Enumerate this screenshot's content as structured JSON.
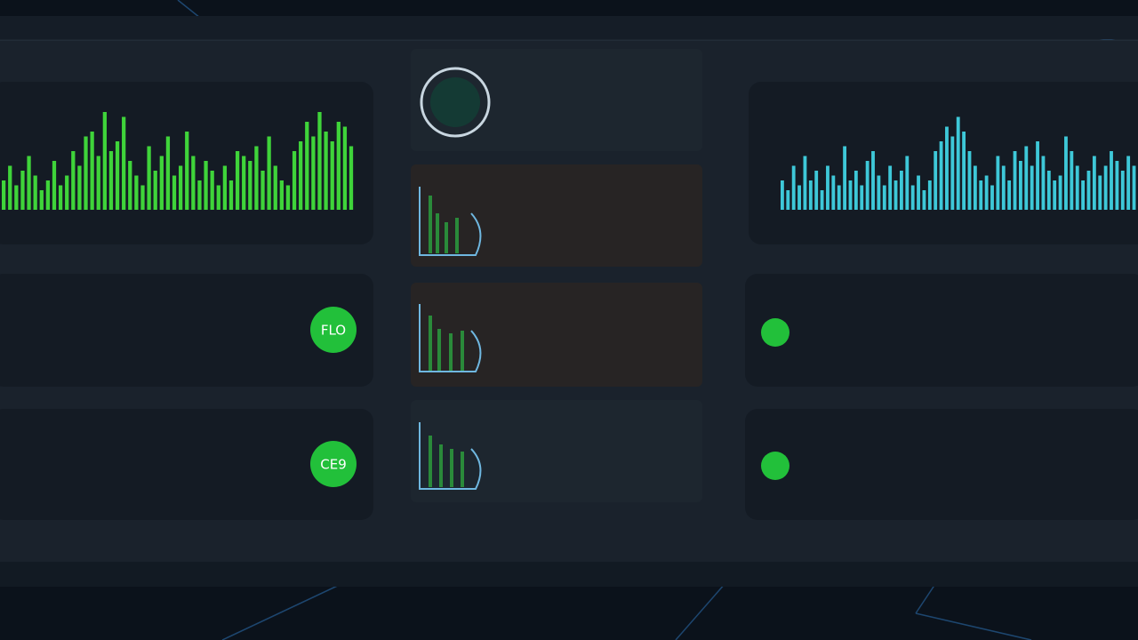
{
  "left_chart": {
    "color": "#3fd43a",
    "values": [
      30,
      45,
      25,
      40,
      55,
      35,
      20,
      30,
      50,
      25,
      35,
      60,
      45,
      75,
      80,
      55,
      100,
      60,
      70,
      95,
      50,
      35,
      25,
      65,
      40,
      55,
      75,
      35,
      45,
      80,
      55,
      30,
      50,
      40,
      25,
      45,
      30,
      60,
      55,
      50,
      65,
      40,
      75,
      45,
      30,
      25,
      60,
      70,
      90,
      75,
      100,
      80,
      70,
      90,
      85,
      65
    ]
  },
  "right_chart": {
    "color": "#3ec8d8",
    "values": [
      30,
      20,
      45,
      25,
      55,
      30,
      40,
      20,
      45,
      35,
      25,
      65,
      30,
      40,
      25,
      50,
      60,
      35,
      25,
      45,
      30,
      40,
      55,
      25,
      35,
      20,
      30,
      60,
      70,
      85,
      75,
      95,
      80,
      60,
      45,
      30,
      35,
      25,
      55,
      45,
      30,
      60,
      50,
      65,
      45,
      70,
      55,
      40,
      30,
      35,
      75,
      60,
      45,
      30,
      40,
      55,
      35,
      45,
      60,
      50,
      40,
      55,
      45
    ]
  },
  "badges": [
    {
      "label": "FLO"
    },
    {
      "label": "CE9"
    }
  ]
}
